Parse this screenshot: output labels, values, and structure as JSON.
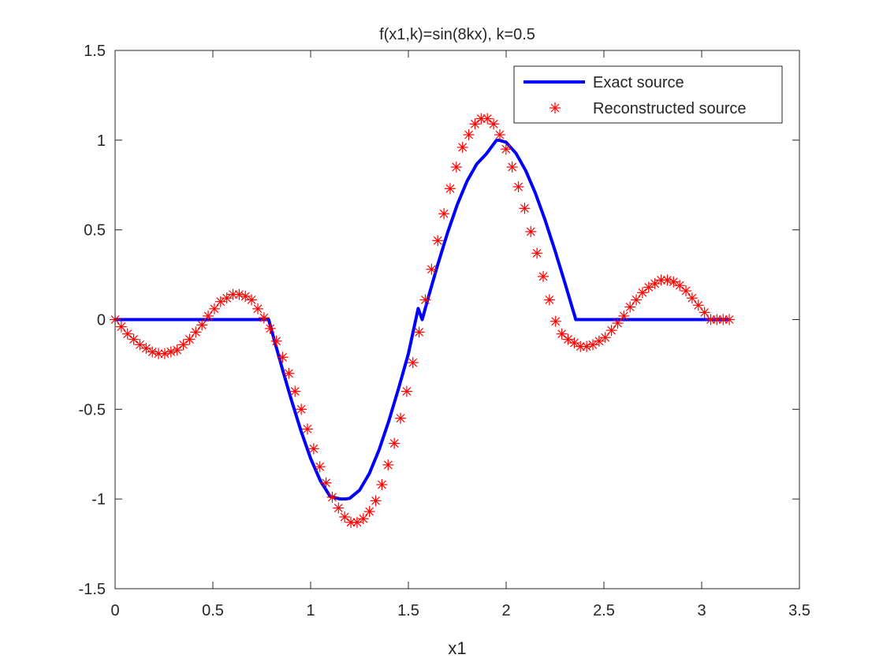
{
  "figure": {
    "background": "#ffffff"
  },
  "chart_data": {
    "type": "line",
    "title": "f(x1,k)=sin(8kx),   k=0.5",
    "xlabel": "x1",
    "ylabel": "",
    "xlim": [
      0,
      3.5
    ],
    "ylim": [
      -1.5,
      1.5
    ],
    "xticks": [
      0,
      0.5,
      1,
      1.5,
      2,
      2.5,
      3,
      3.5
    ],
    "xtick_labels": [
      "0",
      "0.5",
      "1",
      "1.5",
      "2",
      "2.5",
      "3",
      "3.5"
    ],
    "yticks": [
      -1.5,
      -1,
      -0.5,
      0,
      0.5,
      1,
      1.5
    ],
    "ytick_labels": [
      "-1.5",
      "-1",
      "-0.5",
      "0",
      "0.5",
      "1",
      "1.5"
    ],
    "grid": false,
    "box": true,
    "legend_position": "top-right",
    "series": [
      {
        "name": "Exact source",
        "style": "line",
        "color": "#0000ff",
        "x": [
          0,
          0.7854,
          0.82,
          0.86,
          0.9,
          0.95,
          1.0,
          1.05,
          1.1,
          1.15,
          1.1781,
          1.2,
          1.25,
          1.3,
          1.35,
          1.4,
          1.45,
          1.5,
          1.55,
          1.5708,
          1.6,
          1.65,
          1.7,
          1.75,
          1.8,
          1.85,
          1.9,
          1.95,
          1.9635,
          2.0,
          2.05,
          2.1,
          2.15,
          2.2,
          2.25,
          2.3,
          2.3562,
          3.1416
        ],
        "y": [
          0,
          0,
          -0.1379,
          -0.2924,
          -0.4425,
          -0.6182,
          -0.7739,
          -0.8992,
          -0.9856,
          -0.9998,
          -1.0,
          -0.9962,
          -0.9513,
          -0.8589,
          -0.7262,
          -0.5646,
          -0.3831,
          -0.1902,
          0.0616,
          0,
          0.1167,
          0.3053,
          0.483,
          0.641,
          0.7714,
          0.8677,
          0.9253,
          0.999,
          1.0,
          0.988,
          0.9272,
          0.8305,
          0.7032,
          0.5519,
          0.3836,
          0.2062,
          0,
          0
        ]
      },
      {
        "name": "Reconstructed source",
        "style": "markers",
        "marker": "asterisk",
        "color": "#ff0000",
        "x": [
          0,
          0.0317,
          0.0635,
          0.0952,
          0.1269,
          0.1587,
          0.1904,
          0.2221,
          0.2539,
          0.2856,
          0.3173,
          0.3491,
          0.3808,
          0.4125,
          0.4443,
          0.476,
          0.5077,
          0.5395,
          0.5712,
          0.6029,
          0.6347,
          0.6664,
          0.6981,
          0.7299,
          0.7616,
          0.7933,
          0.8251,
          0.8568,
          0.8885,
          0.9203,
          0.952,
          0.9837,
          1.0155,
          1.0472,
          1.0789,
          1.1107,
          1.1424,
          1.1741,
          1.2059,
          1.2376,
          1.2693,
          1.3011,
          1.3328,
          1.3645,
          1.3963,
          1.428,
          1.4597,
          1.4915,
          1.5232,
          1.5549,
          1.5867,
          1.6184,
          1.6501,
          1.6819,
          1.7136,
          1.7453,
          1.7771,
          1.8088,
          1.8405,
          1.8723,
          1.904,
          1.9357,
          1.9675,
          1.9992,
          2.0309,
          2.0627,
          2.0944,
          2.1261,
          2.1579,
          2.1896,
          2.2213,
          2.2531,
          2.2848,
          2.3165,
          2.3483,
          2.38,
          2.4117,
          2.4435,
          2.4752,
          2.5069,
          2.5387,
          2.5704,
          2.6021,
          2.6339,
          2.6656,
          2.6973,
          2.7291,
          2.7608,
          2.7925,
          2.8243,
          2.856,
          2.8877,
          2.9195,
          2.9512,
          2.9829,
          3.0147,
          3.0464,
          3.0781,
          3.1099,
          3.1416
        ],
        "y": [
          0,
          -0.04,
          -0.08,
          -0.11,
          -0.14,
          -0.16,
          -0.18,
          -0.19,
          -0.19,
          -0.18,
          -0.17,
          -0.14,
          -0.11,
          -0.07,
          -0.03,
          0.02,
          0.06,
          0.1,
          0.12,
          0.14,
          0.14,
          0.13,
          0.11,
          0.06,
          0.01,
          -0.05,
          -0.12,
          -0.21,
          -0.3,
          -0.4,
          -0.5,
          -0.61,
          -0.72,
          -0.82,
          -0.91,
          -0.99,
          -1.05,
          -1.1,
          -1.13,
          -1.13,
          -1.11,
          -1.07,
          -1.01,
          -0.92,
          -0.81,
          -0.69,
          -0.55,
          -0.4,
          -0.24,
          -0.07,
          0.11,
          0.28,
          0.44,
          0.59,
          0.73,
          0.85,
          0.96,
          1.03,
          1.09,
          1.12,
          1.12,
          1.09,
          1.03,
          0.95,
          0.85,
          0.74,
          0.62,
          0.49,
          0.37,
          0.24,
          0.11,
          -0.01,
          -0.08,
          -0.11,
          -0.13,
          -0.15,
          -0.15,
          -0.14,
          -0.12,
          -0.1,
          -0.06,
          -0.02,
          0.02,
          0.07,
          0.11,
          0.15,
          0.18,
          0.2,
          0.22,
          0.22,
          0.21,
          0.19,
          0.16,
          0.12,
          0.08,
          0.04,
          0.0,
          0.0,
          0.0,
          0.0
        ]
      }
    ]
  }
}
